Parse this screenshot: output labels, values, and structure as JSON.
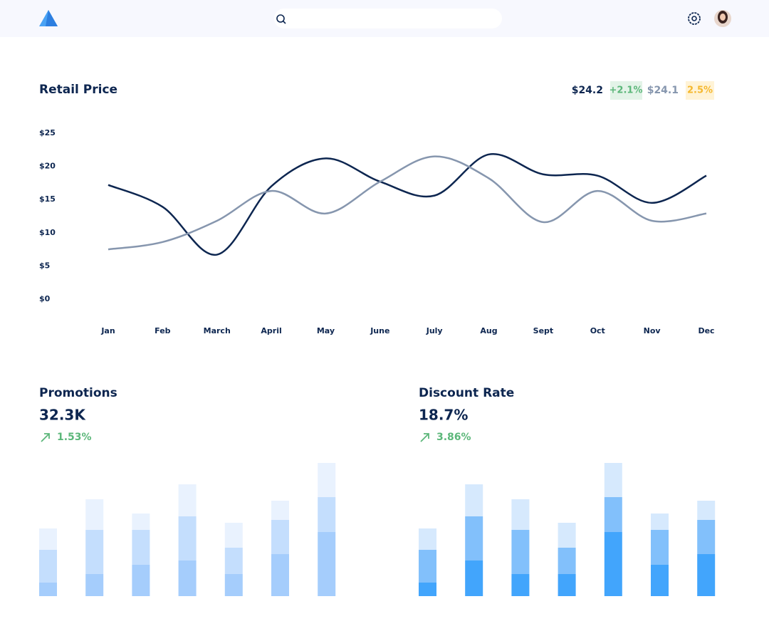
{
  "chart_data": [
    {
      "type": "line",
      "title": "Retail Price",
      "legend": [
        {
          "value": "$24.2",
          "change": "+2.1%"
        },
        {
          "value": "$24.1",
          "change": "2.5%"
        }
      ],
      "categories": [
        "Jan",
        "Feb",
        "March",
        "April",
        "May",
        "June",
        "July",
        "Aug",
        "Sept",
        "Oct",
        "Nov",
        "Dec"
      ],
      "series": [
        {
          "color": "#0d2650",
          "values": [
            17.2,
            13.9,
            6.7,
            17.0,
            21.2,
            17.7,
            15.6,
            21.8,
            18.8,
            18.6,
            14.5,
            18.6
          ]
        },
        {
          "color": "#8696ae",
          "values": [
            7.5,
            8.6,
            11.8,
            16.3,
            12.9,
            17.7,
            21.5,
            18.2,
            11.6,
            16.3,
            11.8,
            12.9
          ]
        }
      ],
      "ylim": [
        0,
        25
      ],
      "yticks": [
        {
          "value": 0,
          "label": "$0"
        },
        {
          "value": 5,
          "label": "$5"
        },
        {
          "value": 10,
          "label": "$10"
        },
        {
          "value": 15,
          "label": "$15"
        },
        {
          "value": 20,
          "label": "$20"
        },
        {
          "value": 25,
          "label": "$25"
        }
      ]
    },
    {
      "type": "bar",
      "title": "Promotions",
      "total": "32.3K",
      "change": "1.53%",
      "ylim": [
        0,
        190
      ],
      "series": [
        {
          "color": "#a5cdfc",
          "values": [
            19,
            31,
            44,
            50,
            31,
            59,
            90
          ]
        },
        {
          "color": "#c4defd",
          "values": [
            46,
            62,
            49,
            62,
            37,
            48,
            49
          ]
        },
        {
          "color": "#e9f2fe",
          "values": [
            30,
            43,
            23,
            45,
            35,
            27,
            48
          ]
        }
      ]
    },
    {
      "type": "bar",
      "title": "Discount Rate",
      "total": "18.7%",
      "change": "3.86%",
      "ylim": [
        0,
        190
      ],
      "series": [
        {
          "color": "#42a5fc",
          "values": [
            19,
            50,
            31,
            31,
            90,
            44,
            59
          ]
        },
        {
          "color": "#82c0fb",
          "values": [
            46,
            62,
            62,
            37,
            49,
            49,
            48
          ]
        },
        {
          "color": "#d6e9fd",
          "values": [
            30,
            45,
            43,
            35,
            48,
            23,
            27
          ]
        }
      ]
    }
  ]
}
